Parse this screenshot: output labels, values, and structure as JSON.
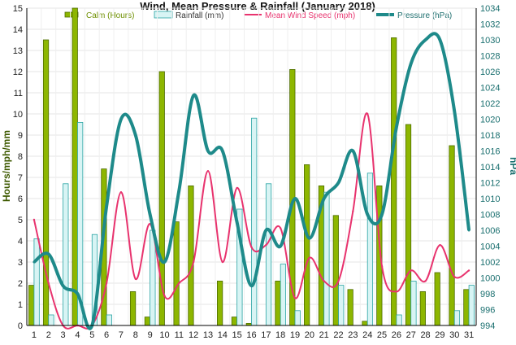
{
  "chart_data": {
    "type": "bar",
    "title": "Wind, Mean Pressure & Rainfall (January 2018)",
    "ylabel_left": "Hours/mph/mm",
    "ylabel_right": "hPa",
    "ylim_left": [
      0,
      15
    ],
    "ylim_right": [
      994,
      1034
    ],
    "left_ticks": [
      "0",
      "1",
      "2",
      "3",
      "4",
      "5",
      "6",
      "7",
      "8",
      "9",
      "10",
      "11",
      "12",
      "13",
      "14",
      "15"
    ],
    "right_ticks": [
      "994",
      "996",
      "998",
      "1000",
      "1002",
      "1004",
      "1006",
      "1008",
      "1010",
      "1012",
      "1014",
      "1016",
      "1018",
      "1020",
      "1022",
      "1024",
      "1026",
      "1028",
      "1030",
      "1032",
      "1034"
    ],
    "grid": true,
    "legend_position": "top",
    "categories": [
      "1",
      "2",
      "3",
      "4",
      "5",
      "6",
      "7",
      "8",
      "9",
      "10",
      "11",
      "12",
      "13",
      "14",
      "15",
      "16",
      "17",
      "18",
      "19",
      "20",
      "21",
      "22",
      "23",
      "24",
      "25",
      "26",
      "27",
      "28",
      "29",
      "30",
      "31"
    ],
    "series": [
      {
        "name": "Calm (Hours)",
        "type": "bar",
        "axis": "left",
        "color": "#8db600",
        "values": [
          1.9,
          13.5,
          0,
          15,
          0,
          7.4,
          0,
          1.6,
          0.4,
          12,
          4.9,
          6.6,
          0,
          2.1,
          0.4,
          0.1,
          0,
          2.1,
          12.1,
          7.6,
          6.6,
          5.2,
          1.7,
          0.2,
          6.6,
          13.6,
          9.5,
          1.6,
          2.5,
          8.5,
          1.7
        ]
      },
      {
        "name": "Rainfall (mm)",
        "type": "bar",
        "axis": "left",
        "color": "#d8f4f4",
        "values": [
          4.1,
          0.5,
          6.7,
          9.6,
          4.3,
          0.5,
          0,
          0,
          4.5,
          0,
          0,
          0,
          0,
          0,
          5.5,
          9.8,
          6.7,
          2.9,
          0.7,
          0,
          6.3,
          1.9,
          0,
          7.2,
          0,
          0.5,
          2.1,
          0,
          0,
          0.7,
          1.9
        ]
      },
      {
        "name": "Mean Wind Speed (mph)",
        "type": "line",
        "axis": "left",
        "color": "#e8336e",
        "values": [
          5,
          2,
          0,
          0,
          0,
          2,
          6.3,
          2.2,
          4.8,
          1.4,
          2,
          3,
          7.3,
          3,
          6.5,
          3.7,
          3.8,
          4.6,
          1.3,
          3.2,
          2.1,
          2.1,
          5.4,
          10,
          2.8,
          1.6,
          2.6,
          2.1,
          3.8,
          2.3,
          2.6
        ]
      },
      {
        "name": "Pressure (hPa)",
        "type": "line",
        "axis": "right",
        "color": "#1e8a8a",
        "values": [
          1002,
          1003,
          999,
          998,
          994,
          1009,
          1020,
          1018,
          1008,
          1002,
          1011,
          1023,
          1016,
          1016,
          1007,
          999,
          1006,
          1004,
          1010,
          1005,
          1010,
          1012,
          1016,
          1008,
          1008,
          1019,
          1027,
          1030,
          1030,
          1021,
          1006
        ]
      }
    ]
  }
}
